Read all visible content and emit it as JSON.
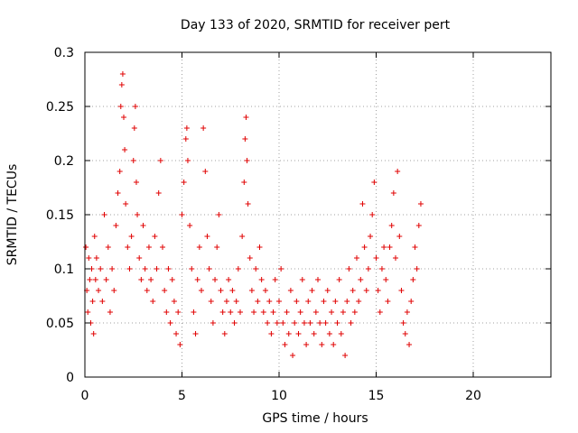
{
  "chart_data": {
    "type": "scatter",
    "title": "Day 133 of 2020, SRMTID for receiver pert",
    "xlabel": "GPS time / hours",
    "ylabel": "SRMTID / TECUs",
    "xlim": [
      0,
      24
    ],
    "ylim": [
      0,
      0.3
    ],
    "xticks": [
      "0",
      "5",
      "10",
      "15",
      "20"
    ],
    "yticks": [
      "0",
      "0.05",
      "0.1",
      "0.15",
      "0.2",
      "0.25",
      "0.3"
    ],
    "grid": true,
    "marker": "+",
    "color": "#e00000",
    "series": [
      {
        "points": [
          [
            0.05,
            0.12
          ],
          [
            0.1,
            0.08
          ],
          [
            0.15,
            0.06
          ],
          [
            0.2,
            0.11
          ],
          [
            0.25,
            0.09
          ],
          [
            0.3,
            0.05
          ],
          [
            0.35,
            0.1
          ],
          [
            0.4,
            0.07
          ],
          [
            0.45,
            0.04
          ],
          [
            0.5,
            0.13
          ],
          [
            0.55,
            0.09
          ],
          [
            0.6,
            0.11
          ],
          [
            0.7,
            0.08
          ],
          [
            0.8,
            0.1
          ],
          [
            0.9,
            0.07
          ],
          [
            1.0,
            0.15
          ],
          [
            1.1,
            0.09
          ],
          [
            1.2,
            0.12
          ],
          [
            1.3,
            0.06
          ],
          [
            1.4,
            0.1
          ],
          [
            1.5,
            0.08
          ],
          [
            1.6,
            0.14
          ],
          [
            1.7,
            0.17
          ],
          [
            1.8,
            0.19
          ],
          [
            1.85,
            0.25
          ],
          [
            1.9,
            0.27
          ],
          [
            1.95,
            0.28
          ],
          [
            2.0,
            0.24
          ],
          [
            2.05,
            0.21
          ],
          [
            2.1,
            0.16
          ],
          [
            2.2,
            0.12
          ],
          [
            2.3,
            0.1
          ],
          [
            2.4,
            0.13
          ],
          [
            2.5,
            0.2
          ],
          [
            2.55,
            0.23
          ],
          [
            2.6,
            0.25
          ],
          [
            2.65,
            0.18
          ],
          [
            2.7,
            0.15
          ],
          [
            2.8,
            0.11
          ],
          [
            2.9,
            0.09
          ],
          [
            3.0,
            0.14
          ],
          [
            3.1,
            0.1
          ],
          [
            3.2,
            0.08
          ],
          [
            3.3,
            0.12
          ],
          [
            3.4,
            0.09
          ],
          [
            3.5,
            0.07
          ],
          [
            3.6,
            0.13
          ],
          [
            3.7,
            0.1
          ],
          [
            3.8,
            0.17
          ],
          [
            3.9,
            0.2
          ],
          [
            4.0,
            0.12
          ],
          [
            4.1,
            0.08
          ],
          [
            4.2,
            0.06
          ],
          [
            4.3,
            0.1
          ],
          [
            4.4,
            0.05
          ],
          [
            4.5,
            0.09
          ],
          [
            4.6,
            0.07
          ],
          [
            4.7,
            0.04
          ],
          [
            4.8,
            0.06
          ],
          [
            4.9,
            0.03
          ],
          [
            5.0,
            0.15
          ],
          [
            5.1,
            0.18
          ],
          [
            5.2,
            0.22
          ],
          [
            5.25,
            0.23
          ],
          [
            5.3,
            0.2
          ],
          [
            5.4,
            0.14
          ],
          [
            5.5,
            0.1
          ],
          [
            5.6,
            0.06
          ],
          [
            5.7,
            0.04
          ],
          [
            5.8,
            0.09
          ],
          [
            5.9,
            0.12
          ],
          [
            6.0,
            0.08
          ],
          [
            6.1,
            0.23
          ],
          [
            6.2,
            0.19
          ],
          [
            6.3,
            0.13
          ],
          [
            6.4,
            0.1
          ],
          [
            6.5,
            0.07
          ],
          [
            6.6,
            0.05
          ],
          [
            6.7,
            0.09
          ],
          [
            6.8,
            0.12
          ],
          [
            6.9,
            0.15
          ],
          [
            7.0,
            0.08
          ],
          [
            7.1,
            0.06
          ],
          [
            7.2,
            0.04
          ],
          [
            7.3,
            0.07
          ],
          [
            7.4,
            0.09
          ],
          [
            7.5,
            0.06
          ],
          [
            7.6,
            0.08
          ],
          [
            7.7,
            0.05
          ],
          [
            7.8,
            0.07
          ],
          [
            7.9,
            0.1
          ],
          [
            8.0,
            0.06
          ],
          [
            8.1,
            0.13
          ],
          [
            8.2,
            0.18
          ],
          [
            8.25,
            0.22
          ],
          [
            8.3,
            0.24
          ],
          [
            8.35,
            0.2
          ],
          [
            8.4,
            0.16
          ],
          [
            8.5,
            0.11
          ],
          [
            8.6,
            0.08
          ],
          [
            8.7,
            0.06
          ],
          [
            8.8,
            0.1
          ],
          [
            8.9,
            0.07
          ],
          [
            9.0,
            0.12
          ],
          [
            9.1,
            0.09
          ],
          [
            9.2,
            0.06
          ],
          [
            9.3,
            0.08
          ],
          [
            9.4,
            0.05
          ],
          [
            9.5,
            0.07
          ],
          [
            9.6,
            0.04
          ],
          [
            9.7,
            0.06
          ],
          [
            9.8,
            0.09
          ],
          [
            9.9,
            0.05
          ],
          [
            10.0,
            0.07
          ],
          [
            10.1,
            0.1
          ],
          [
            10.2,
            0.05
          ],
          [
            10.3,
            0.03
          ],
          [
            10.4,
            0.06
          ],
          [
            10.5,
            0.04
          ],
          [
            10.6,
            0.08
          ],
          [
            10.7,
            0.02
          ],
          [
            10.8,
            0.05
          ],
          [
            10.9,
            0.07
          ],
          [
            11.0,
            0.04
          ],
          [
            11.1,
            0.06
          ],
          [
            11.2,
            0.09
          ],
          [
            11.3,
            0.05
          ],
          [
            11.4,
            0.03
          ],
          [
            11.5,
            0.07
          ],
          [
            11.6,
            0.05
          ],
          [
            11.7,
            0.08
          ],
          [
            11.8,
            0.04
          ],
          [
            11.9,
            0.06
          ],
          [
            12.0,
            0.09
          ],
          [
            12.1,
            0.05
          ],
          [
            12.2,
            0.03
          ],
          [
            12.3,
            0.07
          ],
          [
            12.4,
            0.05
          ],
          [
            12.5,
            0.08
          ],
          [
            12.6,
            0.04
          ],
          [
            12.7,
            0.06
          ],
          [
            12.8,
            0.03
          ],
          [
            12.9,
            0.07
          ],
          [
            13.0,
            0.05
          ],
          [
            13.1,
            0.09
          ],
          [
            13.2,
            0.04
          ],
          [
            13.3,
            0.06
          ],
          [
            13.4,
            0.02
          ],
          [
            13.5,
            0.07
          ],
          [
            13.6,
            0.1
          ],
          [
            13.7,
            0.05
          ],
          [
            13.8,
            0.08
          ],
          [
            13.9,
            0.06
          ],
          [
            14.0,
            0.11
          ],
          [
            14.1,
            0.07
          ],
          [
            14.2,
            0.09
          ],
          [
            14.3,
            0.16
          ],
          [
            14.4,
            0.12
          ],
          [
            14.5,
            0.08
          ],
          [
            14.6,
            0.1
          ],
          [
            14.7,
            0.13
          ],
          [
            14.8,
            0.15
          ],
          [
            14.9,
            0.18
          ],
          [
            15.0,
            0.11
          ],
          [
            15.1,
            0.08
          ],
          [
            15.2,
            0.06
          ],
          [
            15.3,
            0.1
          ],
          [
            15.4,
            0.12
          ],
          [
            15.5,
            0.09
          ],
          [
            15.6,
            0.07
          ],
          [
            15.7,
            0.12
          ],
          [
            15.8,
            0.14
          ],
          [
            15.9,
            0.17
          ],
          [
            16.0,
            0.11
          ],
          [
            16.1,
            0.19
          ],
          [
            16.2,
            0.13
          ],
          [
            16.3,
            0.08
          ],
          [
            16.4,
            0.05
          ],
          [
            16.5,
            0.04
          ],
          [
            16.6,
            0.06
          ],
          [
            16.7,
            0.03
          ],
          [
            16.8,
            0.07
          ],
          [
            16.9,
            0.09
          ],
          [
            17.0,
            0.12
          ],
          [
            17.1,
            0.1
          ],
          [
            17.2,
            0.14
          ],
          [
            17.3,
            0.16
          ]
        ]
      }
    ]
  }
}
